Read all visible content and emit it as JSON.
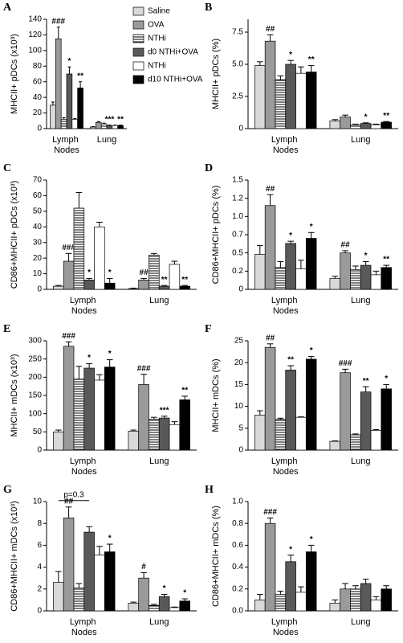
{
  "chart_data": [
    {
      "type": "bar",
      "panel": "A",
      "ylabel": "MHCII+ pDCs (x10³)",
      "categories": [
        "Lymph Nodes",
        "Lung"
      ],
      "ylim": [
        0,
        140
      ],
      "yticks": [
        0,
        20,
        40,
        60,
        80,
        100,
        120,
        140
      ],
      "legend": true,
      "series": [
        {
          "name": "Saline",
          "color": "#d9d9d9",
          "values": [
            30,
            2
          ],
          "errors": [
            4,
            0.5
          ],
          "significance": [
            null,
            null
          ]
        },
        {
          "name": "OVA",
          "color": "#9a9a9a",
          "values": [
            115,
            8
          ],
          "errors": [
            15,
            1
          ],
          "significance": [
            "###",
            null
          ]
        },
        {
          "name": "NTHi",
          "color": "#ffffff",
          "pattern": "horizontal-stripes",
          "values": [
            12,
            6
          ],
          "errors": [
            2,
            1
          ],
          "significance": [
            null,
            null
          ]
        },
        {
          "name": "d0 NTHi+OVA",
          "color": "#595959",
          "values": [
            70,
            4
          ],
          "errors": [
            9,
            0.5
          ],
          "significance": [
            "*",
            "***"
          ]
        },
        {
          "name": "NTHi",
          "color": "#ffffff",
          "values": [
            12,
            4
          ],
          "errors": [
            1,
            0.5
          ],
          "significance": [
            null,
            null
          ]
        },
        {
          "name": "d10 NTHi+OVA",
          "color": "#000000",
          "values": [
            52,
            4
          ],
          "errors": [
            8,
            0.5
          ],
          "significance": [
            "**",
            "**"
          ]
        }
      ]
    },
    {
      "type": "bar",
      "panel": "B",
      "ylabel": "MHCII+ pDCs (%)",
      "categories": [
        "Lymph Nodes",
        "Lung"
      ],
      "ylim": [
        0,
        8.5
      ],
      "yticks": [
        0,
        2.5,
        {
          "value": 5,
          "label": "5.0"
        },
        7.5
      ],
      "series": [
        {
          "color": "#d9d9d9",
          "values": [
            4.9,
            0.6
          ],
          "errors": [
            0.3,
            0.1
          ],
          "significance": [
            null,
            null
          ]
        },
        {
          "color": "#9a9a9a",
          "values": [
            6.8,
            0.9
          ],
          "errors": [
            0.5,
            0.15
          ],
          "significance": [
            "##",
            null
          ]
        },
        {
          "color": "#ffffff",
          "pattern": "horizontal-stripes",
          "values": [
            3.8,
            0.3
          ],
          "errors": [
            0.3,
            0.05
          ],
          "significance": [
            null,
            null
          ]
        },
        {
          "color": "#595959",
          "values": [
            5.0,
            0.4
          ],
          "errors": [
            0.3,
            0.05
          ],
          "significance": [
            "*",
            "*"
          ]
        },
        {
          "color": "#ffffff",
          "values": [
            4.3,
            0.3
          ],
          "errors": [
            0.5,
            0.05
          ],
          "significance": [
            null,
            null
          ]
        },
        {
          "color": "#000000",
          "values": [
            4.4,
            0.5
          ],
          "errors": [
            0.5,
            0.05
          ],
          "significance": [
            "**",
            "**"
          ]
        }
      ]
    },
    {
      "type": "bar",
      "panel": "C",
      "ylabel": "CD86+MHCII+ pDCs (x10³)",
      "categories": [
        "Lymph Nodes",
        "Lung"
      ],
      "ylim": [
        0,
        70
      ],
      "yticks": [
        0,
        10,
        20,
        30,
        40,
        50,
        60,
        70
      ],
      "series": [
        {
          "color": "#d9d9d9",
          "values": [
            2,
            0.5
          ],
          "errors": [
            0.5,
            0.3
          ],
          "significance": [
            null,
            null
          ]
        },
        {
          "color": "#9a9a9a",
          "values": [
            18,
            6
          ],
          "errors": [
            5,
            1
          ],
          "significance": [
            "###",
            "##"
          ]
        },
        {
          "color": "#ffffff",
          "pattern": "horizontal-stripes",
          "values": [
            52,
            22
          ],
          "errors": [
            10,
            1
          ],
          "significance": [
            null,
            null
          ]
        },
        {
          "color": "#595959",
          "values": [
            6,
            2
          ],
          "errors": [
            1,
            0.5
          ],
          "significance": [
            "*",
            "**"
          ]
        },
        {
          "color": "#ffffff",
          "values": [
            40,
            16
          ],
          "errors": [
            3,
            2
          ],
          "significance": [
            null,
            null
          ]
        },
        {
          "color": "#000000",
          "values": [
            4,
            2
          ],
          "errors": [
            3,
            0.5
          ],
          "significance": [
            "*",
            "**"
          ]
        }
      ]
    },
    {
      "type": "bar",
      "panel": "D",
      "ylabel": "CD86+MHCII+ pDCs (%)",
      "categories": [
        "Lymph Nodes",
        "Lung"
      ],
      "ylim": [
        0,
        1.5
      ],
      "yticks": [
        0,
        {
          "value": 0.25,
          "label": "0.2"
        },
        0.5,
        {
          "value": 0.75,
          "label": "0.7"
        },
        {
          "value": 1,
          "label": "1.0"
        },
        {
          "value": 1.25,
          "label": "1.2"
        },
        1.5
      ],
      "series": [
        {
          "color": "#d9d9d9",
          "values": [
            0.48,
            0.15
          ],
          "errors": [
            0.12,
            0.03
          ],
          "significance": [
            null,
            null
          ]
        },
        {
          "color": "#9a9a9a",
          "values": [
            1.15,
            0.5
          ],
          "errors": [
            0.15,
            0.03
          ],
          "significance": [
            "##",
            "##"
          ]
        },
        {
          "color": "#ffffff",
          "pattern": "horizontal-stripes",
          "values": [
            0.3,
            0.27
          ],
          "errors": [
            0.08,
            0.05
          ],
          "significance": [
            null,
            null
          ]
        },
        {
          "color": "#595959",
          "values": [
            0.63,
            0.33
          ],
          "errors": [
            0.03,
            0.05
          ],
          "significance": [
            "*",
            "*"
          ]
        },
        {
          "color": "#ffffff",
          "values": [
            0.28,
            0.2
          ],
          "errors": [
            0.12,
            0.05
          ],
          "significance": [
            null,
            null
          ]
        },
        {
          "color": "#000000",
          "values": [
            0.7,
            0.3
          ],
          "errors": [
            0.08,
            0.03
          ],
          "significance": [
            "*",
            "**"
          ]
        }
      ]
    },
    {
      "type": "bar",
      "panel": "E",
      "ylabel": "MHCII+ mDCs (x10³)",
      "categories": [
        "Lymph Nodes",
        "Lung"
      ],
      "ylim": [
        0,
        300
      ],
      "yticks": [
        0,
        50,
        100,
        150,
        200,
        250,
        300
      ],
      "series": [
        {
          "color": "#d9d9d9",
          "values": [
            50,
            52
          ],
          "errors": [
            5,
            3
          ],
          "significance": [
            null,
            null
          ]
        },
        {
          "color": "#9a9a9a",
          "values": [
            285,
            180
          ],
          "errors": [
            12,
            28
          ],
          "significance": [
            "###",
            "###"
          ]
        },
        {
          "color": "#ffffff",
          "pattern": "horizontal-stripes",
          "values": [
            195,
            85
          ],
          "errors": [
            35,
            5
          ],
          "significance": [
            null,
            null
          ]
        },
        {
          "color": "#595959",
          "values": [
            225,
            88
          ],
          "errors": [
            12,
            5
          ],
          "significance": [
            "*",
            "***"
          ]
        },
        {
          "color": "#ffffff",
          "values": [
            192,
            70
          ],
          "errors": [
            15,
            8
          ],
          "significance": [
            null,
            null
          ]
        },
        {
          "color": "#000000",
          "values": [
            228,
            138
          ],
          "errors": [
            20,
            10
          ],
          "significance": [
            "*",
            "**"
          ]
        }
      ]
    },
    {
      "type": "bar",
      "panel": "F",
      "ylabel": "MHCII+ mDCs (%)",
      "categories": [
        "Lymph Nodes",
        "Lung"
      ],
      "ylim": [
        0,
        25
      ],
      "yticks": [
        0,
        5,
        10,
        15,
        20,
        25
      ],
      "series": [
        {
          "color": "#d9d9d9",
          "values": [
            8,
            2
          ],
          "errors": [
            1,
            0.1
          ],
          "significance": [
            null,
            null
          ]
        },
        {
          "color": "#9a9a9a",
          "values": [
            23.5,
            17.7
          ],
          "errors": [
            0.8,
            0.8
          ],
          "significance": [
            "##",
            "###"
          ]
        },
        {
          "color": "#ffffff",
          "pattern": "horizontal-stripes",
          "values": [
            7,
            3.5
          ],
          "errors": [
            0.3,
            0.2
          ],
          "significance": [
            null,
            null
          ]
        },
        {
          "color": "#595959",
          "values": [
            18.3,
            13.3
          ],
          "errors": [
            1,
            1.2
          ],
          "significance": [
            "**",
            "**"
          ]
        },
        {
          "color": "#ffffff",
          "values": [
            7.5,
            4.5
          ],
          "errors": [
            0.1,
            0.2
          ],
          "significance": [
            null,
            null
          ]
        },
        {
          "color": "#000000",
          "values": [
            20.8,
            14
          ],
          "errors": [
            0.6,
            1
          ],
          "significance": [
            "*",
            "*"
          ]
        }
      ]
    },
    {
      "type": "bar",
      "panel": "G",
      "ylabel": "CD86+MHCII+ mDCs (x10³)",
      "categories": [
        "Lymph Nodes",
        "Lung"
      ],
      "ylim": [
        0,
        10
      ],
      "yticks": [
        0,
        2,
        4,
        6,
        8,
        10
      ],
      "bracket_label": "p=0.3",
      "series": [
        {
          "color": "#d9d9d9",
          "values": [
            2.6,
            0.7
          ],
          "errors": [
            1,
            0.1
          ],
          "significance": [
            null,
            null
          ]
        },
        {
          "color": "#9a9a9a",
          "values": [
            8.5,
            3.0
          ],
          "errors": [
            1,
            0.5
          ],
          "significance": [
            "##",
            "#"
          ]
        },
        {
          "color": "#ffffff",
          "pattern": "horizontal-stripes",
          "values": [
            2.1,
            0.5
          ],
          "errors": [
            0.4,
            0.1
          ],
          "significance": [
            null,
            null
          ]
        },
        {
          "color": "#595959",
          "values": [
            7.2,
            1.3
          ],
          "errors": [
            0.5,
            0.2
          ],
          "significance": [
            null,
            "*"
          ]
        },
        {
          "color": "#ffffff",
          "values": [
            5.1,
            0.3
          ],
          "errors": [
            0.8,
            0.05
          ],
          "significance": [
            null,
            null
          ]
        },
        {
          "color": "#000000",
          "values": [
            5.4,
            0.9
          ],
          "errors": [
            0.7,
            0.2
          ],
          "significance": [
            "*",
            "*"
          ]
        }
      ]
    },
    {
      "type": "bar",
      "panel": "H",
      "ylabel": "CD86+MHCII+ mDCs (%)",
      "categories": [
        "Lymph Nodes",
        "Lung"
      ],
      "ylim": [
        0,
        1
      ],
      "yticks": [
        {
          "value": 0,
          "label": "0.0"
        },
        0.2,
        0.4,
        0.6,
        0.8,
        {
          "value": 1,
          "label": "1.0"
        }
      ],
      "series": [
        {
          "color": "#d9d9d9",
          "values": [
            0.1,
            0.07
          ],
          "errors": [
            0.05,
            0.03
          ],
          "significance": [
            null,
            null
          ]
        },
        {
          "color": "#9a9a9a",
          "values": [
            0.8,
            0.2
          ],
          "errors": [
            0.05,
            0.05
          ],
          "significance": [
            "###",
            null
          ]
        },
        {
          "color": "#ffffff",
          "pattern": "horizontal-stripes",
          "values": [
            0.15,
            0.2
          ],
          "errors": [
            0.03,
            0.03
          ],
          "significance": [
            null,
            null
          ]
        },
        {
          "color": "#595959",
          "values": [
            0.45,
            0.25
          ],
          "errors": [
            0.06,
            0.04
          ],
          "significance": [
            "*",
            null
          ]
        },
        {
          "color": "#ffffff",
          "values": [
            0.17,
            0.1
          ],
          "errors": [
            0.05,
            0.03
          ],
          "significance": [
            null,
            null
          ]
        },
        {
          "color": "#000000",
          "values": [
            0.54,
            0.2
          ],
          "errors": [
            0.06,
            0.03
          ],
          "significance": [
            "*",
            null
          ]
        }
      ]
    }
  ]
}
